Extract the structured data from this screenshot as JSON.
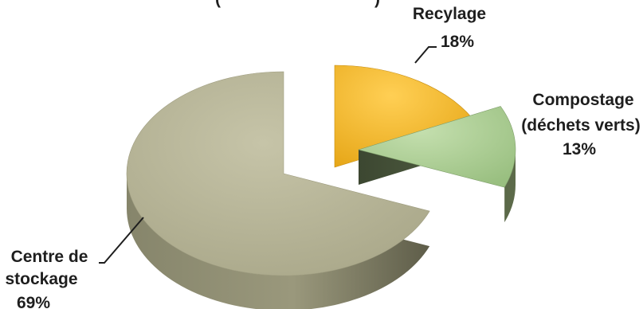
{
  "chart_data": {
    "type": "pie",
    "style": "3d-exploded",
    "title": "",
    "slices": [
      {
        "label": "Recylage",
        "value": 18,
        "value_label": "18%",
        "color": "#f2b12c",
        "side_color": "#9a6b10"
      },
      {
        "label": "Compostage (déchets verts)",
        "value": 13,
        "value_label": "13%",
        "color": "#a9cc8f",
        "side_color": "#4f5a3f"
      },
      {
        "label": "Centre de stockage",
        "value": 69,
        "value_label": "69%",
        "color": "#b7b596",
        "side_color": "#7b7a60"
      }
    ],
    "labels": {
      "recylage": {
        "line1": "Recylage",
        "line2": "18%"
      },
      "compostage": {
        "line1": "Compostage",
        "line2": "(déchets verts)",
        "line3": "13%"
      },
      "centre": {
        "line1": "Centre de",
        "line2": "stockage",
        "line3": "69%"
      }
    },
    "cropped_title_fragment": "(",
    "cropped_title_fragment_end": ")"
  }
}
